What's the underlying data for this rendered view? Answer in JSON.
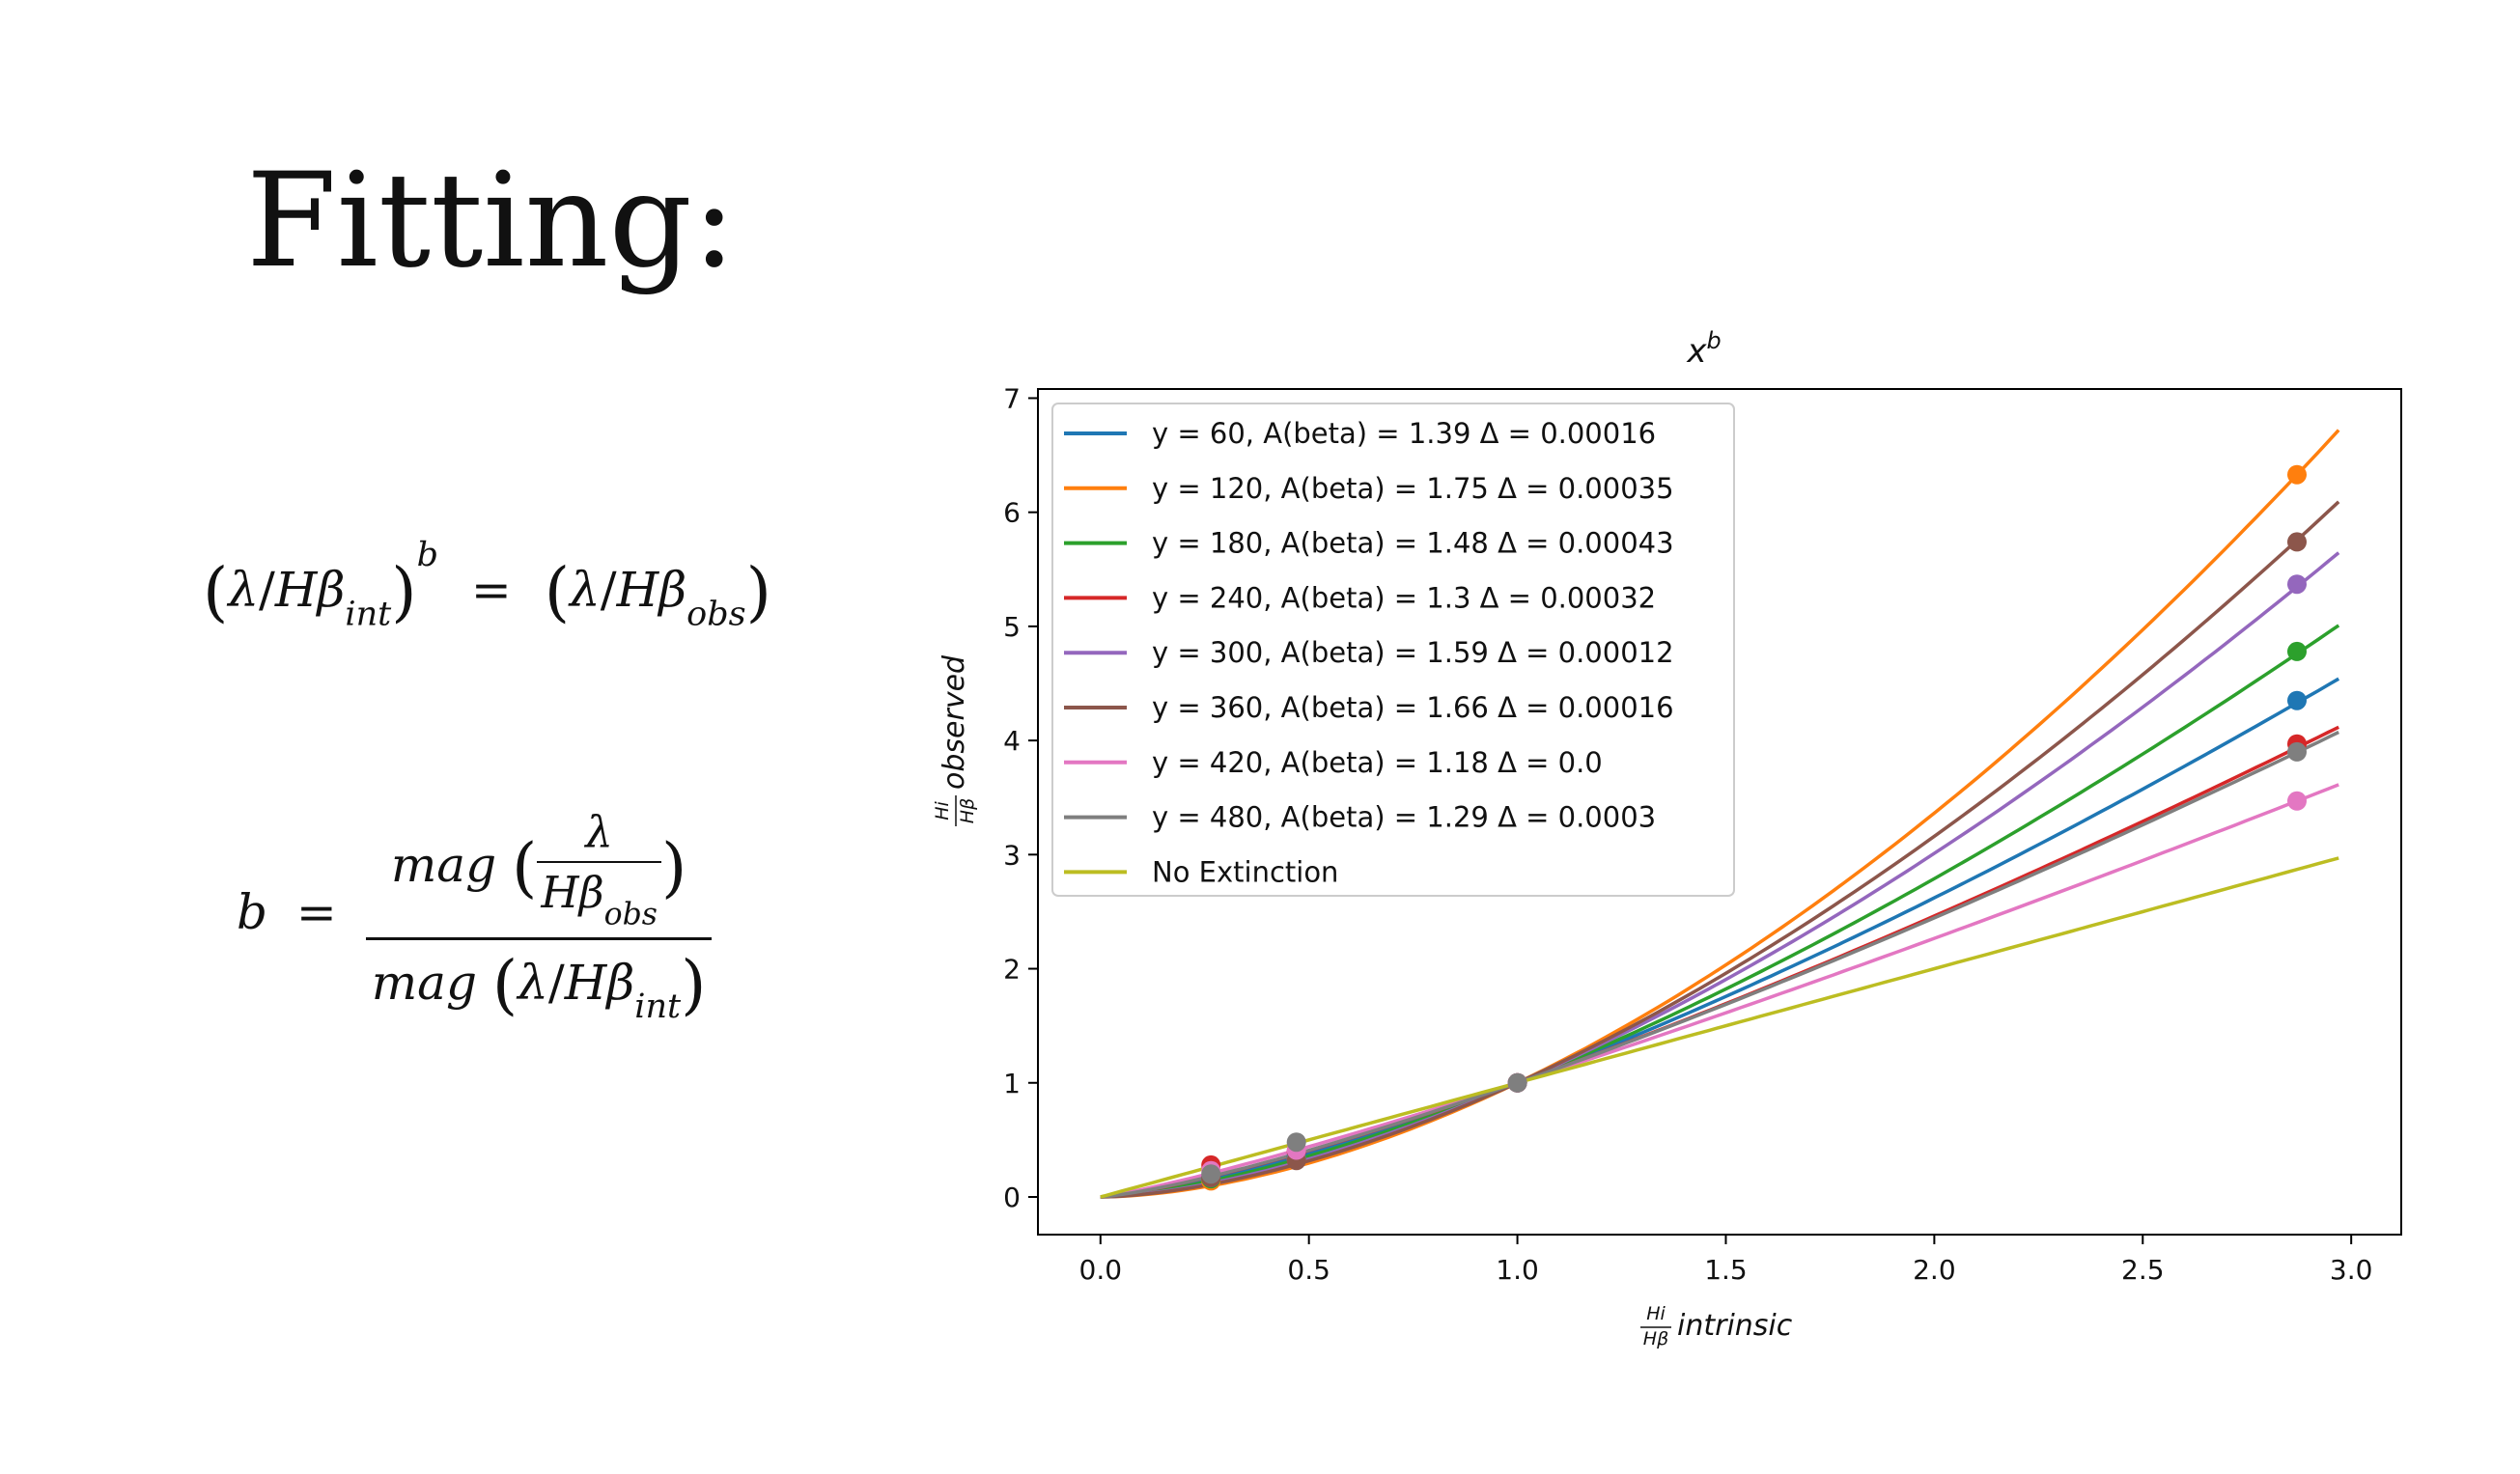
{
  "slide": {
    "title": "Fitting:"
  },
  "equations": {
    "eq1": {
      "lambda": "λ",
      "slash": "/",
      "h": "H",
      "beta": "β",
      "int": "int",
      "obs": "obs",
      "b": "b",
      "equals": "="
    },
    "eq2": {
      "b": "b",
      "equals": "=",
      "mag": "mag",
      "lambda": "λ",
      "h": "H",
      "beta": "β",
      "int": "int",
      "obs": "obs",
      "slash": "/"
    }
  },
  "chart_data": {
    "type": "line",
    "title": "x^b",
    "xlabel": "Hi/Hβ intrinsic",
    "ylabel": "Hi/Hβ observed",
    "xlim": [
      -0.15,
      3.12
    ],
    "ylim": [
      -0.33,
      7.08
    ],
    "xticks": [
      0.0,
      0.5,
      1.0,
      1.5,
      2.0,
      2.5,
      3.0
    ],
    "xtick_labels": [
      "0.0",
      "0.5",
      "1.0",
      "1.5",
      "2.0",
      "2.5",
      "3.0"
    ],
    "yticks": [
      0,
      1,
      2,
      3,
      4,
      5,
      6,
      7
    ],
    "ytick_labels": [
      "0",
      "1",
      "2",
      "3",
      "4",
      "5",
      "6",
      "7"
    ],
    "grid": false,
    "legend_position": "upper-left",
    "x_points": [
      0.265,
      0.47,
      1.0,
      2.87
    ],
    "series": [
      {
        "name": "y = 60, A(beta) = 1.39 Δ = 0.00016",
        "exponent": 1.39,
        "color": "#1f77b4",
        "markers": [
          0.16,
          0.36,
          1.0,
          4.35
        ]
      },
      {
        "name": "y = 120, A(beta) = 1.75 Δ = 0.00035",
        "exponent": 1.75,
        "color": "#ff7f0e",
        "markers": [
          0.14,
          0.33,
          1.0,
          6.33
        ]
      },
      {
        "name": "y = 180, A(beta) = 1.48 Δ = 0.00043",
        "exponent": 1.48,
        "color": "#2ca02c",
        "markers": [
          0.16,
          0.34,
          1.0,
          4.78
        ]
      },
      {
        "name": "y = 240, A(beta) = 1.3 Δ = 0.00032",
        "exponent": 1.3,
        "color": "#d62728",
        "markers": [
          0.28,
          0.4,
          1.0,
          3.97
        ]
      },
      {
        "name": "y = 300, A(beta) = 1.59 Δ = 0.00012",
        "exponent": 1.59,
        "color": "#9467bd",
        "markers": [
          0.17,
          0.33,
          1.0,
          5.37
        ]
      },
      {
        "name": "y = 360, A(beta) = 1.66 Δ = 0.00016",
        "exponent": 1.66,
        "color": "#8c564b",
        "markers": [
          0.17,
          0.32,
          1.0,
          5.74
        ]
      },
      {
        "name": "y = 420, A(beta) = 1.18 Δ = 0.0",
        "exponent": 1.18,
        "color": "#e377c2",
        "markers": [
          0.23,
          0.41,
          1.0,
          3.47
        ]
      },
      {
        "name": "y = 480, A(beta) = 1.29 Δ = 0.0003",
        "exponent": 1.29,
        "color": "#7f7f7f",
        "markers": [
          0.2,
          0.48,
          1.0,
          3.9
        ]
      },
      {
        "name": "No Extinction",
        "exponent": 1.0,
        "color": "#bcbd22",
        "markers": []
      }
    ]
  }
}
